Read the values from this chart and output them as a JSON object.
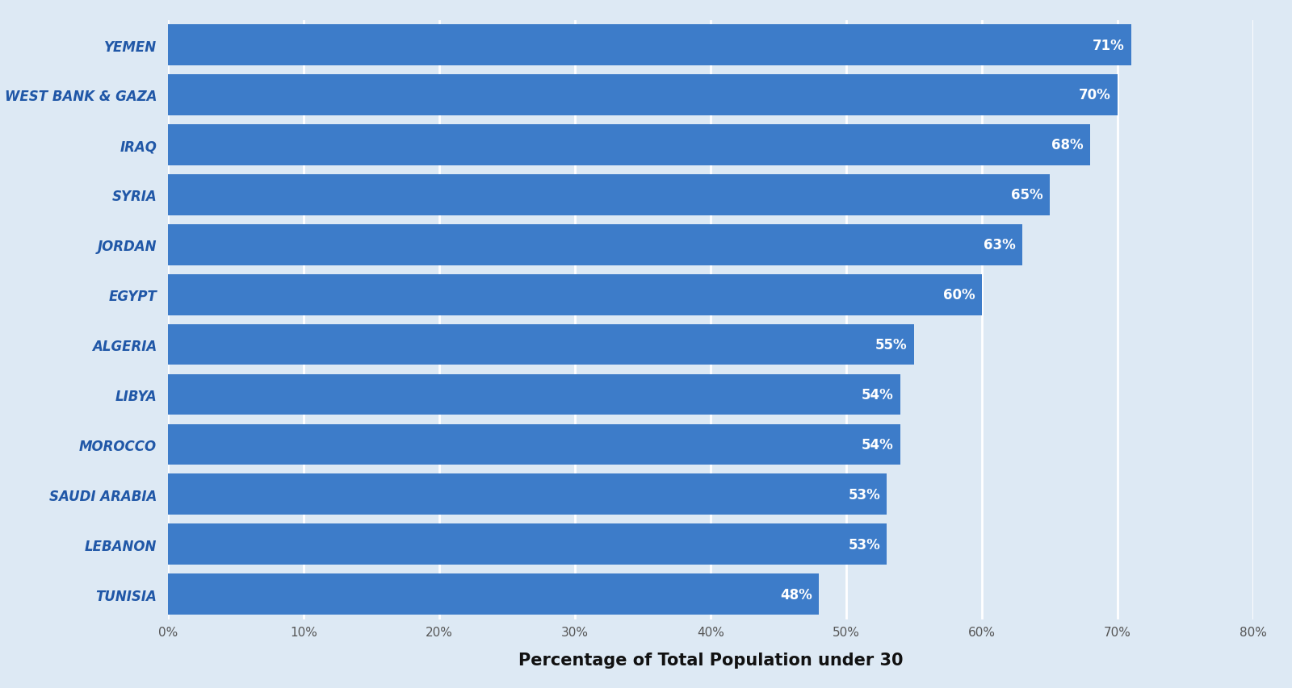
{
  "countries": [
    "YEMEN",
    "WEST BANK & GAZA",
    "IRAQ",
    "SYRIA",
    "JORDAN",
    "EGYPT",
    "ALGERIA",
    "LIBYA",
    "MOROCCO",
    "SAUDI ARABIA",
    "LEBANON",
    "TUNISIA"
  ],
  "values": [
    71,
    70,
    68,
    65,
    63,
    60,
    55,
    54,
    54,
    53,
    53,
    48
  ],
  "bar_color": "#3D7CC9",
  "label_color": "#FFFFFF",
  "ylabel_color": "#2057A7",
  "background_color": "#DDE9F4",
  "xlabel": "Percentage of Total Population under 30",
  "xlabel_fontsize": 15,
  "ylabel_fontsize": 12,
  "label_fontsize": 12,
  "xlim": [
    0,
    80
  ],
  "xticks": [
    0,
    10,
    20,
    30,
    40,
    50,
    60,
    70,
    80
  ],
  "xtick_labels": [
    "0%",
    "10%",
    "20%",
    "30%",
    "40%",
    "50%",
    "60%",
    "70%",
    "80%"
  ]
}
